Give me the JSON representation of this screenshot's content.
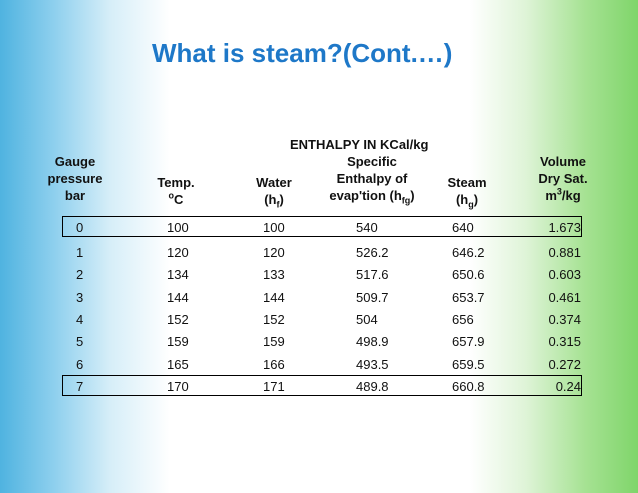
{
  "title": "What is steam?(Cont.…)",
  "headers": {
    "group": "ENTHALPY  IN  KCal/kg",
    "pressure": [
      "Gauge",
      "pressure",
      "bar"
    ],
    "temp": [
      "Temp.",
      "C"
    ],
    "temp_sup": "o",
    "water": "Water",
    "water_sym": "(h",
    "water_sub": "f",
    "water_close": ")",
    "specific": [
      "Specific",
      "Enthalpy of"
    ],
    "evap": "evap'tion (h",
    "evap_sub": "fg",
    "evap_close": ")",
    "steam": "Steam",
    "steam_sym": "(h",
    "steam_sub": "g",
    "steam_close": ")",
    "volume": [
      "Volume",
      "Dry Sat."
    ],
    "vol_unit_a": "m",
    "vol_unit_sup": "3",
    "vol_unit_b": "/kg"
  },
  "rows": [
    [
      "0",
      "100",
      "100",
      "540",
      "640",
      "1.673"
    ],
    [
      "1",
      "120",
      "120",
      "526.2",
      "646.2",
      "0.881"
    ],
    [
      "2",
      "134",
      "133",
      "517.6",
      "650.6",
      "0.603"
    ],
    [
      "3",
      "144",
      "144",
      "509.7",
      "653.7",
      "0.461"
    ],
    [
      "4",
      "152",
      "152",
      "504",
      "656",
      "0.374"
    ],
    [
      "5",
      "159",
      "159",
      "498.9",
      "657.9",
      "0.315"
    ],
    [
      "6",
      "165",
      "166",
      "493.5",
      "659.5",
      "0.272"
    ],
    [
      "7",
      "170",
      "171",
      "489.8",
      "660.8",
      "0.24"
    ]
  ]
}
